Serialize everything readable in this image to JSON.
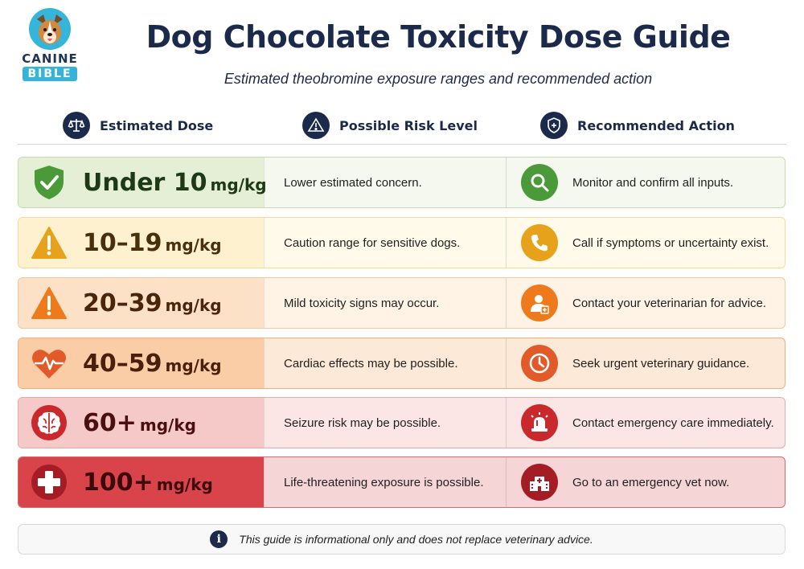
{
  "brand": {
    "line1": "CANINE",
    "line2": "BIBLE"
  },
  "title": "Dog Chocolate Toxicity Dose Guide",
  "subtitle": "Estimated theobromine exposure ranges and recommended action",
  "columns": [
    {
      "label": "Estimated Dose",
      "icon": "scale-icon"
    },
    {
      "label": "Possible Risk Level",
      "icon": "warning-icon"
    },
    {
      "label": "Recommended Action",
      "icon": "shield-plus-icon"
    }
  ],
  "rows": [
    {
      "dose": "Under 10",
      "unit": "mg/kg",
      "risk": "Lower estimated concern.",
      "action": "Monitor and confirm all inputs.",
      "dose_icon": "shield-check-icon",
      "action_icon": "magnifier-icon",
      "colors": {
        "dose_bg": "#e4efd6",
        "row_bg": "#f4f8ee",
        "border": "#c5dcae",
        "text": "#1d3a16",
        "accent": "#4a9a3a"
      }
    },
    {
      "dose": "10–19",
      "unit": "mg/kg",
      "risk": "Caution range for sensitive dogs.",
      "action": "Call if symptoms or uncertainty exist.",
      "dose_icon": "warning-icon",
      "action_icon": "phone-icon",
      "colors": {
        "dose_bg": "#fdf1cf",
        "row_bg": "#fffaea",
        "border": "#f1dc9c",
        "text": "#4a2f0c",
        "accent": "#e6a21a"
      }
    },
    {
      "dose": "20–39",
      "unit": "mg/kg",
      "risk": "Mild toxicity signs may occur.",
      "action": "Contact your veterinarian for advice.",
      "dose_icon": "warning-icon",
      "action_icon": "vet-person-icon",
      "colors": {
        "dose_bg": "#fde1c6",
        "row_bg": "#fff3e6",
        "border": "#f6c79c",
        "text": "#4a250c",
        "accent": "#ee7a1c"
      }
    },
    {
      "dose": "40–59",
      "unit": "mg/kg",
      "risk": "Cardiac effects may be possible.",
      "action": "Seek urgent veterinary guidance.",
      "dose_icon": "heartbeat-icon",
      "action_icon": "clock-icon",
      "colors": {
        "dose_bg": "#fbcda7",
        "row_bg": "#fde9d8",
        "border": "#f2ae7d",
        "text": "#4a1f0c",
        "accent": "#e2592a"
      }
    },
    {
      "dose": "60+",
      "unit": "mg/kg",
      "risk": "Seizure risk may be possible.",
      "action": "Contact emergency care immediately.",
      "dose_icon": "brain-icon",
      "action_icon": "siren-icon",
      "colors": {
        "dose_bg": "#f6c9c9",
        "row_bg": "#fbe5e5",
        "border": "#eaaaaa",
        "text": "#4a1010",
        "accent": "#c9282d"
      }
    },
    {
      "dose": "100+",
      "unit": "mg/kg",
      "risk": "Life-threatening exposure is possible.",
      "action": "Go to an emergency vet now.",
      "dose_icon": "medical-cross-icon",
      "action_icon": "hospital-icon",
      "colors": {
        "dose_bg": "#d9444a",
        "row_bg": "#f6d5d6",
        "border": "#d9686c",
        "text": "#3d0a0c",
        "accent": "#a51d24"
      }
    }
  ],
  "footer": {
    "text": "This guide is informational only and does not replace veterinary advice.",
    "icon": "info-icon"
  }
}
